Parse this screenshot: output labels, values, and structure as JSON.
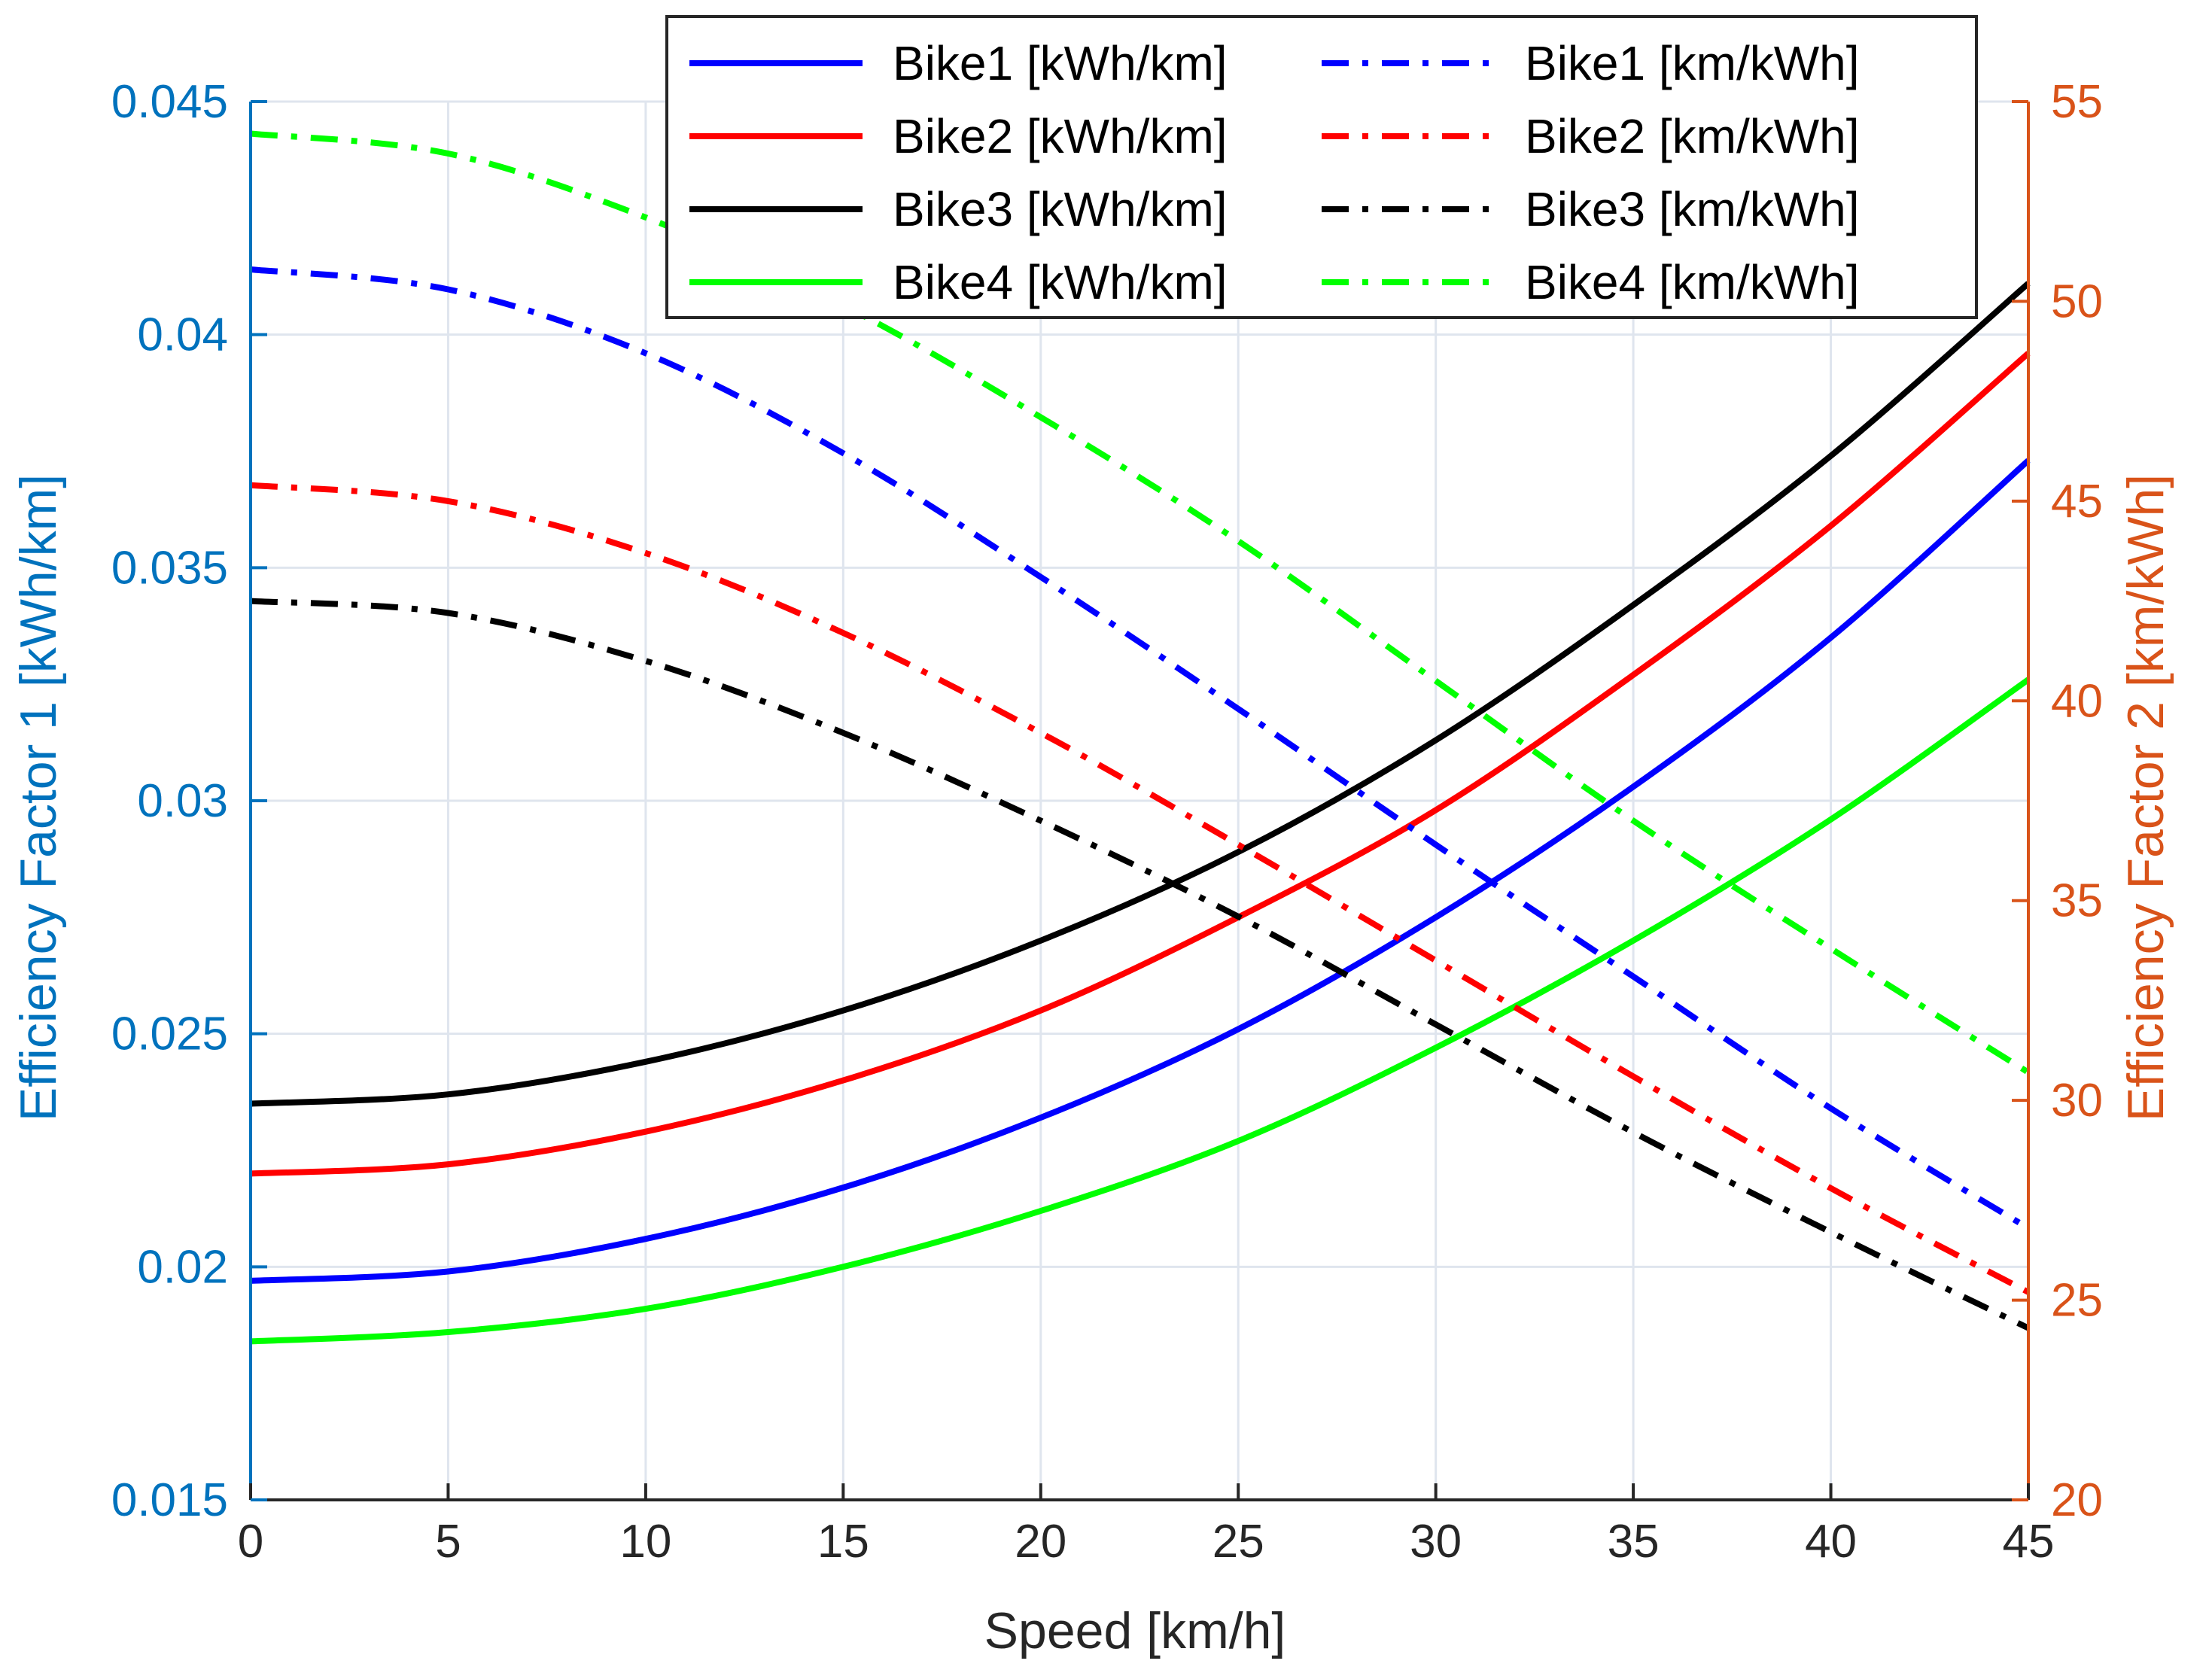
{
  "chart_data": {
    "type": "line",
    "xlabel": "Speed [km/h]",
    "ylabel_left": "Efficiency Factor 1 [kWh/km]",
    "ylabel_right": "Efficiency Factor 2 [km/kWh]",
    "xlim": [
      0,
      45
    ],
    "ylim_left": [
      0.015,
      0.045
    ],
    "ylim_right": [
      20,
      55
    ],
    "x_ticks": [
      "0",
      "5",
      "10",
      "15",
      "20",
      "25",
      "30",
      "35",
      "40",
      "45"
    ],
    "y_left_ticks": [
      "0.015",
      "0.02",
      "0.025",
      "0.03",
      "0.035",
      "0.04",
      "0.045"
    ],
    "y_right_ticks": [
      "20",
      "25",
      "30",
      "35",
      "40",
      "45",
      "50",
      "55"
    ],
    "grid": true,
    "colors": {
      "left_axis": "#0072BD",
      "right_axis": "#D95319",
      "bike1": "#0000FF",
      "bike2": "#FF0000",
      "bike3": "#000000",
      "bike4": "#00FF00",
      "grid": "#dfe5ee"
    },
    "x": [
      0,
      5,
      10,
      15,
      20,
      25,
      30,
      35,
      40,
      45
    ],
    "series": [
      {
        "name": "Bike1 [kWh/km]",
        "axis": "left",
        "style": "solid",
        "color_key": "bike1",
        "values": [
          0.0197,
          0.0199,
          0.0206,
          0.0217,
          0.0232,
          0.0251,
          0.0275,
          0.0303,
          0.0335,
          0.0373
        ]
      },
      {
        "name": "Bike2 [kWh/km]",
        "axis": "left",
        "style": "solid",
        "color_key": "bike2",
        "values": [
          0.022,
          0.0222,
          0.0229,
          0.024,
          0.0255,
          0.0275,
          0.0298,
          0.0327,
          0.0359,
          0.0396
        ]
      },
      {
        "name": "Bike3 [kWh/km]",
        "axis": "left",
        "style": "solid",
        "color_key": "bike3",
        "values": [
          0.0235,
          0.0237,
          0.0244,
          0.0255,
          0.027,
          0.0289,
          0.0313,
          0.0342,
          0.0374,
          0.0411
        ]
      },
      {
        "name": "Bike4 [kWh/km]",
        "axis": "left",
        "style": "solid",
        "color_key": "bike4",
        "values": [
          0.0184,
          0.0186,
          0.0191,
          0.02,
          0.0212,
          0.0227,
          0.0247,
          0.027,
          0.0296,
          0.0326
        ]
      },
      {
        "name": "Bike1 [km/kWh]",
        "axis": "right",
        "style": "dashdot",
        "color_key": "bike1",
        "values": [
          50.8,
          50.3,
          48.7,
          46.2,
          43.1,
          39.8,
          36.4,
          33.1,
          29.8,
          26.8
        ]
      },
      {
        "name": "Bike2 [km/kWh]",
        "axis": "right",
        "style": "dashdot",
        "color_key": "bike2",
        "values": [
          45.4,
          45.0,
          43.7,
          41.7,
          39.2,
          36.4,
          33.5,
          30.6,
          27.8,
          25.2
        ]
      },
      {
        "name": "Bike3 [km/kWh]",
        "axis": "right",
        "style": "dashdot",
        "color_key": "bike3",
        "values": [
          42.5,
          42.2,
          41.0,
          39.2,
          37.0,
          34.6,
          31.9,
          29.2,
          26.7,
          24.3
        ]
      },
      {
        "name": "Bike4 [km/kWh]",
        "axis": "right",
        "style": "dashdot",
        "color_key": "bike4",
        "values": [
          54.2,
          53.7,
          52.1,
          49.9,
          47.1,
          44.0,
          40.5,
          37.0,
          33.8,
          30.7
        ]
      }
    ],
    "legend": {
      "placement": "top-center",
      "columns": 2,
      "order": [
        0,
        4,
        1,
        5,
        2,
        6,
        3,
        7
      ]
    }
  }
}
